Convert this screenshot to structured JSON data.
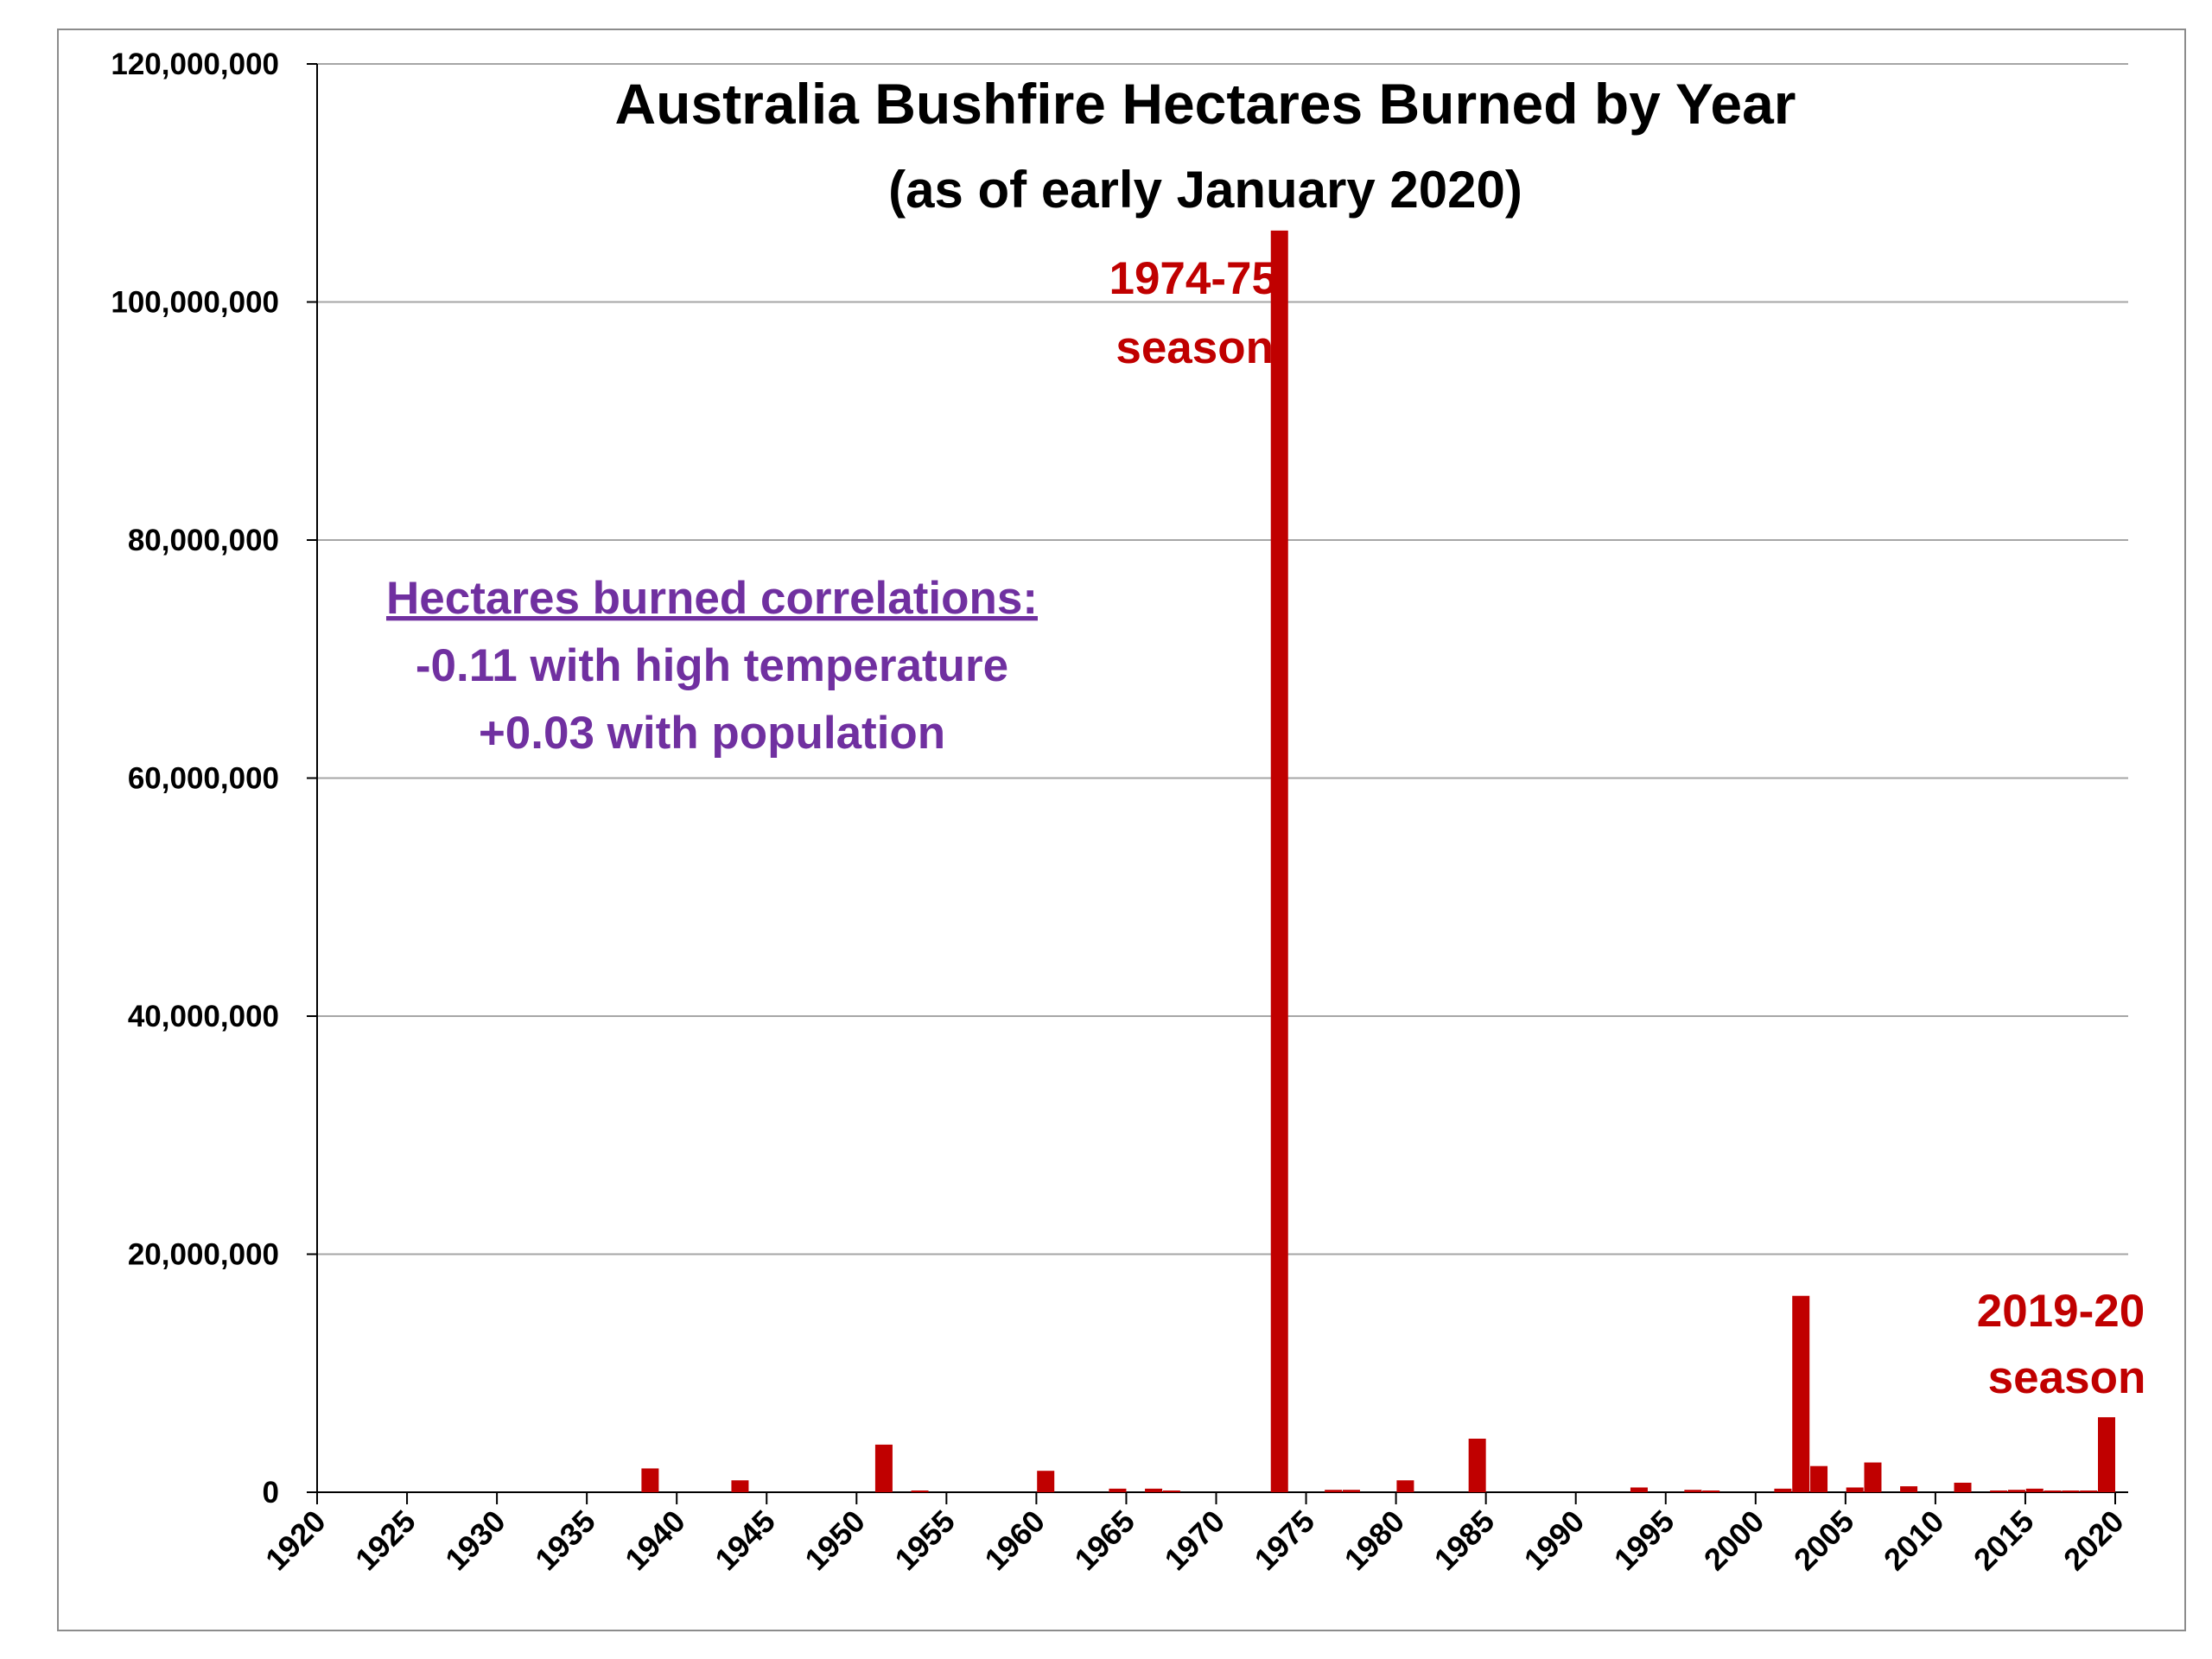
{
  "chart_data": {
    "type": "bar",
    "title": "Australia Bushfire Hectares Burned by Year",
    "subtitle": "(as of early January 2020)",
    "xlabel": "",
    "ylabel": "",
    "xlim": [
      1920,
      2020
    ],
    "ylim": [
      0,
      120000000
    ],
    "x_ticks": [
      "1920",
      "1925",
      "1930",
      "1935",
      "1940",
      "1945",
      "1950",
      "1955",
      "1960",
      "1965",
      "1970",
      "1975",
      "1980",
      "1985",
      "1990",
      "1995",
      "2000",
      "2005",
      "2010",
      "2015",
      "2020"
    ],
    "y_ticks": [
      "0",
      "20,000,000",
      "40,000,000",
      "60,000,000",
      "80,000,000",
      "100,000,000",
      "120,000,000"
    ],
    "grid": true,
    "bar_color": "#c00000",
    "x": [
      1939,
      1944,
      1952,
      1954,
      1961,
      1965,
      1967,
      1968,
      1974,
      1977,
      1978,
      1981,
      1985,
      1994,
      1997,
      1998,
      2002,
      2003,
      2004,
      2006,
      2007,
      2009,
      2012,
      2014,
      2015,
      2016,
      2017,
      2018,
      2019,
      2020
    ],
    "values": [
      2000000,
      1000000,
      4000000,
      100000,
      1800000,
      300000,
      300000,
      100000,
      106000000,
      200000,
      200000,
      1000000,
      4500000,
      400000,
      200000,
      100000,
      300000,
      16500000,
      2200000,
      400000,
      2500000,
      500000,
      800000,
      100000,
      200000,
      300000,
      100000,
      100000,
      100000,
      6300000
    ],
    "annotations": [
      {
        "lines": [
          "1974-75",
          "season"
        ],
        "x": 1974,
        "y": 106000000,
        "color": "#c00000"
      },
      {
        "lines": [
          "2019-20",
          "season"
        ],
        "x": 2020,
        "y": 6300000,
        "color": "#c00000"
      },
      {
        "lines": [
          "Hectares burned correlations:",
          "-0.11 with high temperature",
          "+0.03 with population"
        ],
        "color": "#7030a0"
      }
    ]
  }
}
